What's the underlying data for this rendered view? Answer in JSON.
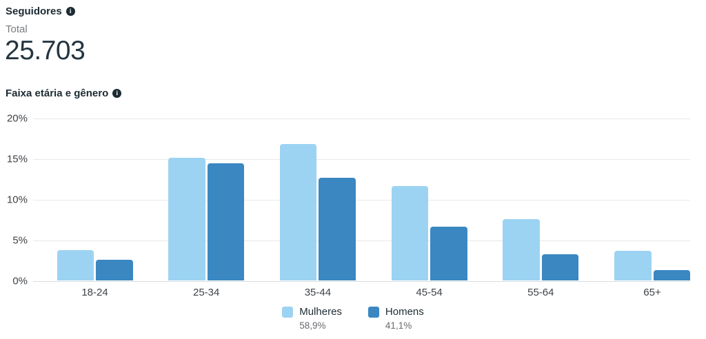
{
  "header": {
    "title": "Seguidores",
    "total_label": "Total",
    "total_value": "25.703"
  },
  "section": {
    "title": "Faixa etária e gênero"
  },
  "chart_data": {
    "type": "bar",
    "title": "Faixa etária e gênero",
    "categories": [
      "18-24",
      "25-34",
      "35-44",
      "45-54",
      "55-64",
      "65+"
    ],
    "series": [
      {
        "name": "Mulheres",
        "share_label": "58,9%",
        "color": "#9CD3F2",
        "values": [
          3.8,
          15.2,
          16.9,
          11.7,
          7.6,
          3.7
        ]
      },
      {
        "name": "Homens",
        "share_label": "41,1%",
        "color": "#3A87C2",
        "values": [
          2.6,
          14.5,
          12.7,
          6.7,
          3.3,
          1.3
        ]
      }
    ],
    "xlabel": "",
    "ylabel": "",
    "ylim": [
      0,
      20
    ],
    "y_ticks": [
      0,
      5,
      10,
      15,
      20
    ],
    "y_tick_suffix": "%",
    "grid": true,
    "legend_position": "bottom"
  }
}
